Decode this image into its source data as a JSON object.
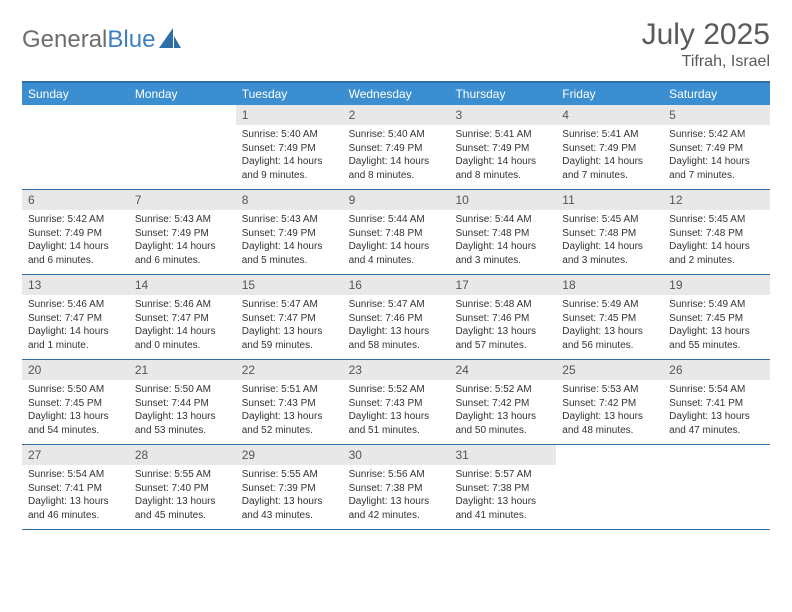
{
  "logo": {
    "text1": "General",
    "text2": "Blue"
  },
  "title": "July 2025",
  "location": "Tifrah, Israel",
  "colors": {
    "header_bar": "#3b8fd0",
    "border": "#2e6fa8",
    "daynum_bg": "#e8e8e8",
    "logo_gray": "#6d6d6d",
    "logo_blue": "#3b7fc4"
  },
  "day_headers": [
    "Sunday",
    "Monday",
    "Tuesday",
    "Wednesday",
    "Thursday",
    "Friday",
    "Saturday"
  ],
  "weeks": [
    [
      null,
      null,
      {
        "n": "1",
        "sr": "5:40 AM",
        "ss": "7:49 PM",
        "dl": "14 hours and 9 minutes."
      },
      {
        "n": "2",
        "sr": "5:40 AM",
        "ss": "7:49 PM",
        "dl": "14 hours and 8 minutes."
      },
      {
        "n": "3",
        "sr": "5:41 AM",
        "ss": "7:49 PM",
        "dl": "14 hours and 8 minutes."
      },
      {
        "n": "4",
        "sr": "5:41 AM",
        "ss": "7:49 PM",
        "dl": "14 hours and 7 minutes."
      },
      {
        "n": "5",
        "sr": "5:42 AM",
        "ss": "7:49 PM",
        "dl": "14 hours and 7 minutes."
      }
    ],
    [
      {
        "n": "6",
        "sr": "5:42 AM",
        "ss": "7:49 PM",
        "dl": "14 hours and 6 minutes."
      },
      {
        "n": "7",
        "sr": "5:43 AM",
        "ss": "7:49 PM",
        "dl": "14 hours and 6 minutes."
      },
      {
        "n": "8",
        "sr": "5:43 AM",
        "ss": "7:49 PM",
        "dl": "14 hours and 5 minutes."
      },
      {
        "n": "9",
        "sr": "5:44 AM",
        "ss": "7:48 PM",
        "dl": "14 hours and 4 minutes."
      },
      {
        "n": "10",
        "sr": "5:44 AM",
        "ss": "7:48 PM",
        "dl": "14 hours and 3 minutes."
      },
      {
        "n": "11",
        "sr": "5:45 AM",
        "ss": "7:48 PM",
        "dl": "14 hours and 3 minutes."
      },
      {
        "n": "12",
        "sr": "5:45 AM",
        "ss": "7:48 PM",
        "dl": "14 hours and 2 minutes."
      }
    ],
    [
      {
        "n": "13",
        "sr": "5:46 AM",
        "ss": "7:47 PM",
        "dl": "14 hours and 1 minute."
      },
      {
        "n": "14",
        "sr": "5:46 AM",
        "ss": "7:47 PM",
        "dl": "14 hours and 0 minutes."
      },
      {
        "n": "15",
        "sr": "5:47 AM",
        "ss": "7:47 PM",
        "dl": "13 hours and 59 minutes."
      },
      {
        "n": "16",
        "sr": "5:47 AM",
        "ss": "7:46 PM",
        "dl": "13 hours and 58 minutes."
      },
      {
        "n": "17",
        "sr": "5:48 AM",
        "ss": "7:46 PM",
        "dl": "13 hours and 57 minutes."
      },
      {
        "n": "18",
        "sr": "5:49 AM",
        "ss": "7:45 PM",
        "dl": "13 hours and 56 minutes."
      },
      {
        "n": "19",
        "sr": "5:49 AM",
        "ss": "7:45 PM",
        "dl": "13 hours and 55 minutes."
      }
    ],
    [
      {
        "n": "20",
        "sr": "5:50 AM",
        "ss": "7:45 PM",
        "dl": "13 hours and 54 minutes."
      },
      {
        "n": "21",
        "sr": "5:50 AM",
        "ss": "7:44 PM",
        "dl": "13 hours and 53 minutes."
      },
      {
        "n": "22",
        "sr": "5:51 AM",
        "ss": "7:43 PM",
        "dl": "13 hours and 52 minutes."
      },
      {
        "n": "23",
        "sr": "5:52 AM",
        "ss": "7:43 PM",
        "dl": "13 hours and 51 minutes."
      },
      {
        "n": "24",
        "sr": "5:52 AM",
        "ss": "7:42 PM",
        "dl": "13 hours and 50 minutes."
      },
      {
        "n": "25",
        "sr": "5:53 AM",
        "ss": "7:42 PM",
        "dl": "13 hours and 48 minutes."
      },
      {
        "n": "26",
        "sr": "5:54 AM",
        "ss": "7:41 PM",
        "dl": "13 hours and 47 minutes."
      }
    ],
    [
      {
        "n": "27",
        "sr": "5:54 AM",
        "ss": "7:41 PM",
        "dl": "13 hours and 46 minutes."
      },
      {
        "n": "28",
        "sr": "5:55 AM",
        "ss": "7:40 PM",
        "dl": "13 hours and 45 minutes."
      },
      {
        "n": "29",
        "sr": "5:55 AM",
        "ss": "7:39 PM",
        "dl": "13 hours and 43 minutes."
      },
      {
        "n": "30",
        "sr": "5:56 AM",
        "ss": "7:38 PM",
        "dl": "13 hours and 42 minutes."
      },
      {
        "n": "31",
        "sr": "5:57 AM",
        "ss": "7:38 PM",
        "dl": "13 hours and 41 minutes."
      },
      null,
      null
    ]
  ]
}
